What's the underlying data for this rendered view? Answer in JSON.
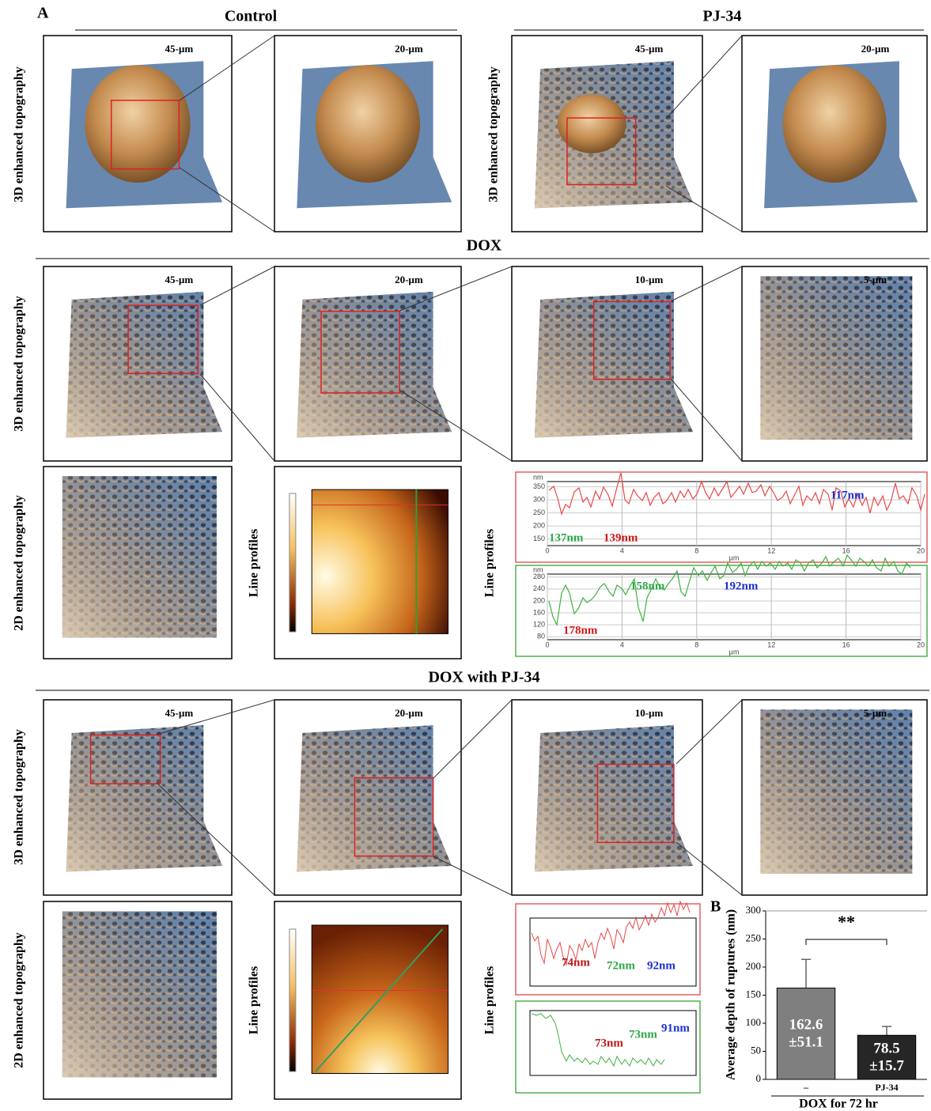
{
  "panel_label_a": "A",
  "columns": {
    "control": "Control",
    "pj34": "PJ-34"
  },
  "sections": {
    "dox": "DOX",
    "dox_pj34": "DOX with PJ-34"
  },
  "row_labels": {
    "topo3d": "3D enhanced topography",
    "topo2d": "2D enhanced topography",
    "line_profiles": "Line profiles"
  },
  "scales": [
    "45-µm",
    "20-µm",
    "10-µm",
    "5-µm"
  ],
  "dox_profiles": {
    "red": {
      "ylabel": "nm",
      "xlabel": "µm",
      "ylim": [
        125,
        370
      ],
      "xlim": [
        0,
        20
      ],
      "yticks": [
        350,
        300,
        250,
        200,
        150
      ],
      "xticks": [
        0,
        4,
        8,
        12,
        16,
        20
      ],
      "annotations": [
        "137nm",
        "139nm",
        "117nm"
      ]
    },
    "green": {
      "ylabel": "nm",
      "xlabel": "µm",
      "ylim": [
        70,
        290
      ],
      "xlim": [
        0,
        20
      ],
      "yticks": [
        280,
        240,
        200,
        160,
        120,
        80
      ],
      "xticks": [
        0,
        4,
        8,
        12,
        16,
        20
      ],
      "annotations": [
        "178nm",
        "158nm",
        "192nm"
      ]
    }
  },
  "dox_pj34_profiles": {
    "red": {
      "annotations": [
        "74nm",
        "72nm",
        "92nm"
      ]
    },
    "green": {
      "annotations": [
        "73nm",
        "73nm",
        "91nm"
      ]
    }
  },
  "chart_data": {
    "type": "bar",
    "panel_label": "B",
    "ylabel": "Average depth of ruptures (nm)",
    "xlabel": "DOX for 72 hr",
    "categories": [
      "–",
      "PJ-34"
    ],
    "values": [
      162.6,
      78.5
    ],
    "errors": [
      51.1,
      15.7
    ],
    "error_labels": [
      "±51.1",
      "±15.7"
    ],
    "colors": [
      "#7f7f7f",
      "#262626"
    ],
    "significance": "**",
    "ylim": [
      0,
      300
    ],
    "yticks": [
      0,
      50,
      100,
      150,
      200,
      250,
      300
    ]
  }
}
